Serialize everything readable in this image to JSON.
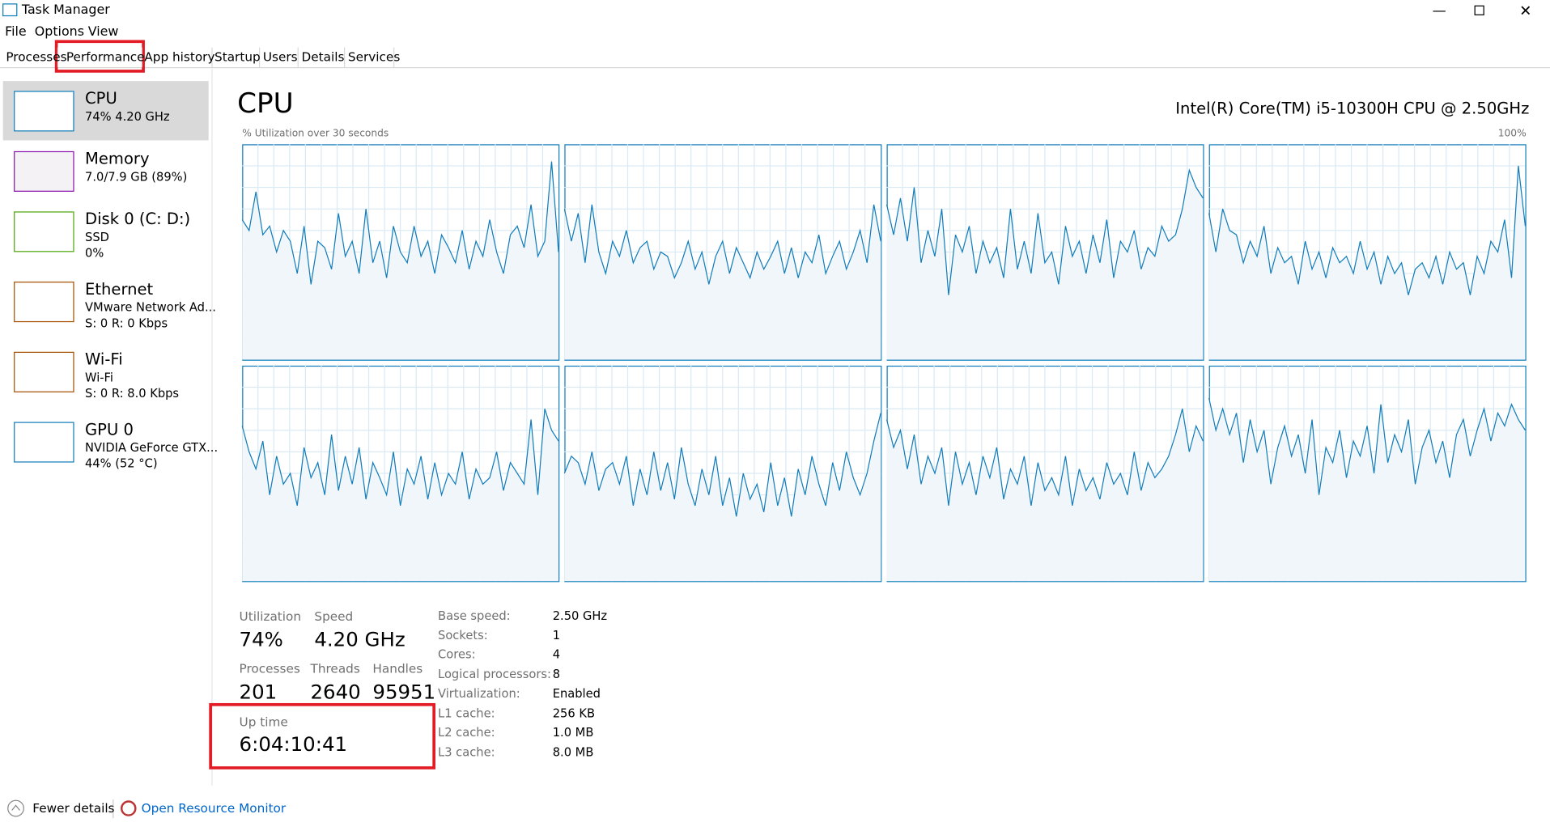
{
  "window": {
    "title": "Task Manager"
  },
  "menu": [
    "File",
    "Options",
    "View"
  ],
  "tabs": [
    "Processes",
    "Performance",
    "App history",
    "Startup",
    "Users",
    "Details",
    "Services"
  ],
  "sidebar": [
    {
      "name": "CPU",
      "lines": [
        "74%  4.20 GHz"
      ]
    },
    {
      "name": "Memory",
      "lines": [
        "7.0/7.9 GB (89%)"
      ]
    },
    {
      "name": "Disk 0 (C: D:)",
      "lines": [
        "SSD",
        "0%"
      ]
    },
    {
      "name": "Ethernet",
      "lines": [
        "VMware Network Ad...",
        "S: 0 R: 0 Kbps"
      ]
    },
    {
      "name": "Wi-Fi",
      "lines": [
        "Wi-Fi",
        "S: 0 R: 8.0 Kbps"
      ]
    },
    {
      "name": "GPU 0",
      "lines": [
        "NVIDIA GeForce GTX...",
        "44% (52 °C)"
      ]
    }
  ],
  "header": {
    "title": "CPU",
    "processor": "Intel(R) Core(TM) i5-10300H CPU @ 2.50GHz",
    "graph_label": "% Utilization over 30 seconds",
    "graph_max": "100%",
    "graph_ylim": [
      0,
      100
    ]
  },
  "graphs": [
    [
      65,
      60,
      78,
      58,
      62,
      50,
      60,
      55,
      40,
      62,
      35,
      55,
      52,
      42,
      68,
      48,
      55,
      40,
      70,
      45,
      55,
      38,
      62,
      50,
      45,
      62,
      48,
      55,
      40,
      58,
      52,
      45,
      60,
      42,
      55,
      48,
      65,
      50,
      40,
      58,
      62,
      52,
      72,
      48,
      55,
      92,
      50
    ],
    [
      70,
      55,
      68,
      45,
      72,
      50,
      40,
      55,
      48,
      60,
      45,
      52,
      55,
      42,
      50,
      48,
      38,
      45,
      55,
      42,
      50,
      35,
      48,
      55,
      40,
      52,
      45,
      38,
      50,
      42,
      48,
      55,
      40,
      52,
      38,
      50,
      45,
      58,
      40,
      48,
      55,
      42,
      50,
      60,
      45,
      72,
      55
    ],
    [
      72,
      58,
      75,
      55,
      80,
      45,
      60,
      48,
      70,
      30,
      58,
      50,
      62,
      40,
      55,
      45,
      52,
      38,
      70,
      42,
      55,
      40,
      68,
      45,
      50,
      35,
      62,
      48,
      55,
      40,
      58,
      45,
      65,
      38,
      55,
      50,
      60,
      42,
      52,
      48,
      62,
      55,
      58,
      70,
      88,
      80,
      75
    ],
    [
      68,
      50,
      70,
      60,
      58,
      45,
      55,
      48,
      62,
      40,
      52,
      45,
      48,
      35,
      55,
      42,
      50,
      38,
      52,
      45,
      48,
      40,
      55,
      42,
      50,
      35,
      48,
      40,
      45,
      30,
      42,
      45,
      38,
      48,
      35,
      50,
      42,
      45,
      30,
      48,
      40,
      55,
      50,
      65,
      38,
      90,
      62
    ],
    [
      72,
      60,
      52,
      65,
      40,
      58,
      45,
      50,
      35,
      62,
      48,
      55,
      40,
      68,
      42,
      58,
      45,
      62,
      38,
      55,
      48,
      40,
      60,
      35,
      52,
      45,
      58,
      38,
      55,
      40,
      50,
      45,
      60,
      38,
      52,
      45,
      48,
      60,
      42,
      55,
      50,
      45,
      75,
      40,
      80,
      70,
      65
    ],
    [
      50,
      58,
      55,
      45,
      60,
      42,
      52,
      55,
      45,
      58,
      35,
      52,
      40,
      60,
      42,
      55,
      38,
      62,
      45,
      35,
      52,
      40,
      58,
      35,
      48,
      30,
      50,
      38,
      45,
      32,
      55,
      35,
      48,
      30,
      52,
      40,
      58,
      45,
      35,
      55,
      42,
      60,
      48,
      40,
      50,
      65,
      78
    ],
    [
      75,
      62,
      70,
      52,
      68,
      45,
      58,
      50,
      62,
      35,
      60,
      45,
      55,
      40,
      58,
      48,
      62,
      38,
      52,
      45,
      58,
      35,
      55,
      42,
      48,
      40,
      58,
      35,
      52,
      42,
      48,
      38,
      55,
      45,
      50,
      40,
      60,
      42,
      55,
      48,
      52,
      58,
      68,
      80,
      60,
      72,
      65
    ],
    [
      85,
      70,
      80,
      68,
      78,
      55,
      75,
      60,
      70,
      45,
      62,
      72,
      58,
      68,
      50,
      75,
      40,
      62,
      55,
      70,
      48,
      65,
      58,
      72,
      50,
      82,
      55,
      68,
      60,
      75,
      45,
      62,
      70,
      55,
      65,
      48,
      68,
      75,
      58,
      70,
      80,
      65,
      78,
      72,
      82,
      75,
      70
    ]
  ],
  "stats": [
    {
      "label": "Utilization",
      "value": "74%"
    },
    {
      "label": "Speed",
      "value": "4.20 GHz"
    },
    {
      "label": "Processes",
      "value": "201"
    },
    {
      "label": "Threads",
      "value": "2640"
    },
    {
      "label": "Handles",
      "value": "95951"
    }
  ],
  "uptime": {
    "label": "Up time",
    "value": "6:04:10:41"
  },
  "specs": [
    [
      "Base speed:",
      "2.50 GHz"
    ],
    [
      "Sockets:",
      "1"
    ],
    [
      "Cores:",
      "4"
    ],
    [
      "Logical processors:",
      "8"
    ],
    [
      "Virtualization:",
      "Enabled"
    ],
    [
      "L1 cache:",
      "256 KB"
    ],
    [
      "L2 cache:",
      "1.0 MB"
    ],
    [
      "L3 cache:",
      "8.0 MB"
    ]
  ],
  "footer": {
    "fewer": "Fewer details",
    "monitor": "Open Resource Monitor"
  }
}
